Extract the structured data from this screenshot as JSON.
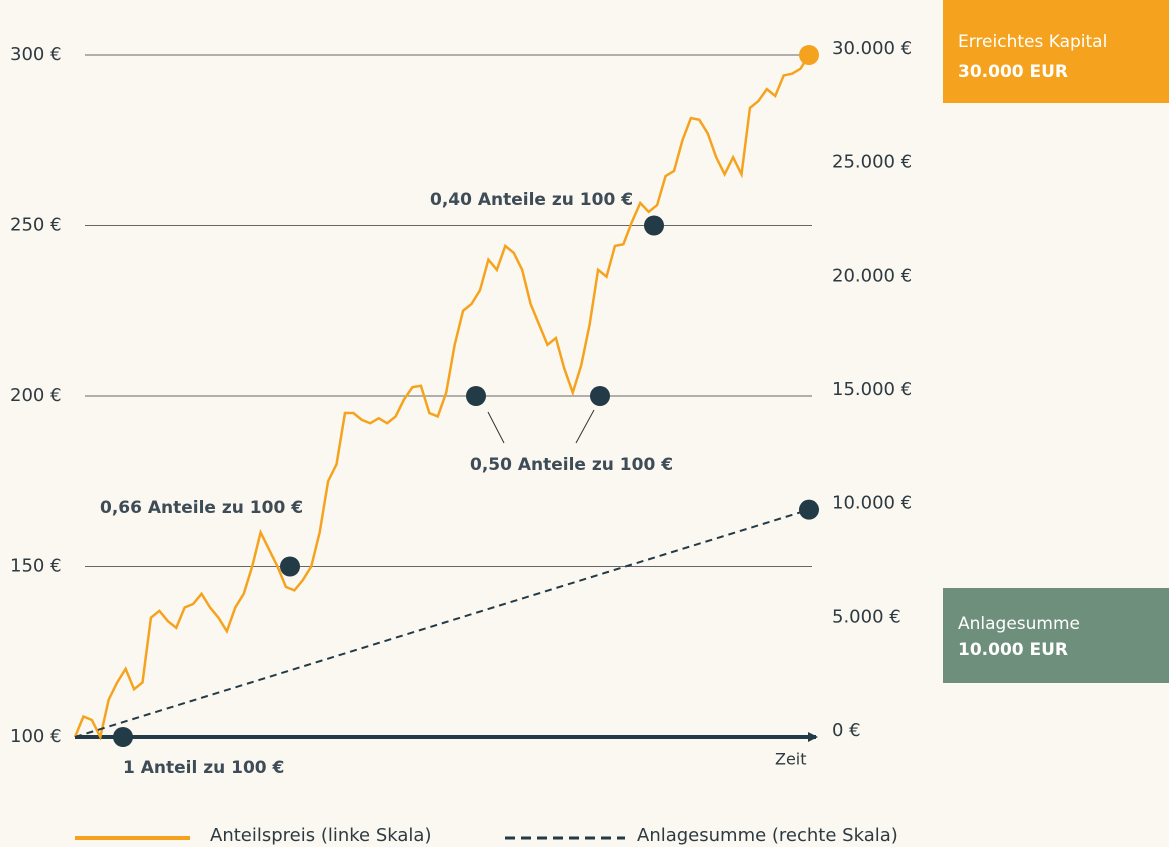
{
  "chart_data": {
    "type": "line",
    "y_ticks_side": "left",
    "ylim": [
      100,
      300
    ],
    "yticks": [
      {
        "value": 100,
        "label": "100 €"
      },
      {
        "value": 150,
        "label": "150 €"
      },
      {
        "value": 200,
        "label": "200 €"
      },
      {
        "value": 250,
        "label": "250 €"
      },
      {
        "value": 300,
        "label": "300 €"
      }
    ],
    "y2lim": [
      0,
      30000
    ],
    "y2ticks": [
      {
        "value": 0,
        "label": "0 €"
      },
      {
        "value": 5000,
        "label": "5.000 €"
      },
      {
        "value": 10000,
        "label": "10.000 €"
      },
      {
        "value": 15000,
        "label": "15.000 €"
      },
      {
        "value": 20000,
        "label": "20.000 €"
      },
      {
        "value": 25000,
        "label": "25.000 €"
      },
      {
        "value": 30000,
        "label": "30.000 €"
      }
    ],
    "grid": true,
    "x_label": "Zeit",
    "series": [
      {
        "name": "Anteilspreis (linke Skala)",
        "color": "#f5a31f",
        "values": [
          100,
          106,
          105,
          100,
          111,
          116,
          120,
          114,
          116,
          135,
          137,
          134,
          132,
          138,
          139,
          142,
          138,
          135,
          131,
          138,
          142,
          150,
          160,
          155,
          150,
          144,
          143,
          146,
          150,
          160,
          175,
          180,
          195,
          195,
          193,
          192,
          193.5,
          192,
          194,
          199,
          202.6,
          203,
          195,
          194,
          201,
          215,
          225,
          227,
          231,
          240,
          237,
          244,
          242,
          237,
          227,
          221,
          215,
          217,
          208,
          201,
          209,
          221,
          237,
          235,
          244,
          244.5,
          251,
          256.6,
          254,
          256,
          264.5,
          266,
          275,
          281.5,
          281,
          277,
          270,
          265,
          270,
          265,
          284.5,
          286.5,
          290,
          288,
          294,
          294.5,
          296,
          300
        ]
      },
      {
        "name": "Anlagesumme (rechte Skala)",
        "color": "#233a47",
        "axis": "y2",
        "dashed": true,
        "values": [
          0,
          10000
        ]
      }
    ],
    "annotations": [
      {
        "text": "1 Anteil zu 100 €",
        "values": [
          100
        ]
      },
      {
        "text": "0,66 Anteile zu 100 €",
        "values": [
          150
        ]
      },
      {
        "text": "0,50 Anteile zu 100 €",
        "values": [
          200,
          200
        ]
      },
      {
        "text": "0,40 Anteile zu 100 €",
        "values": [
          250
        ]
      }
    ],
    "boxes": [
      {
        "title": "Erreichtes Kapital",
        "value": "30.000 EUR",
        "color": "#f5a31f"
      },
      {
        "title": "Anlagesumme",
        "value": "10.000 EUR",
        "color": "#6e8f7c"
      }
    ]
  }
}
